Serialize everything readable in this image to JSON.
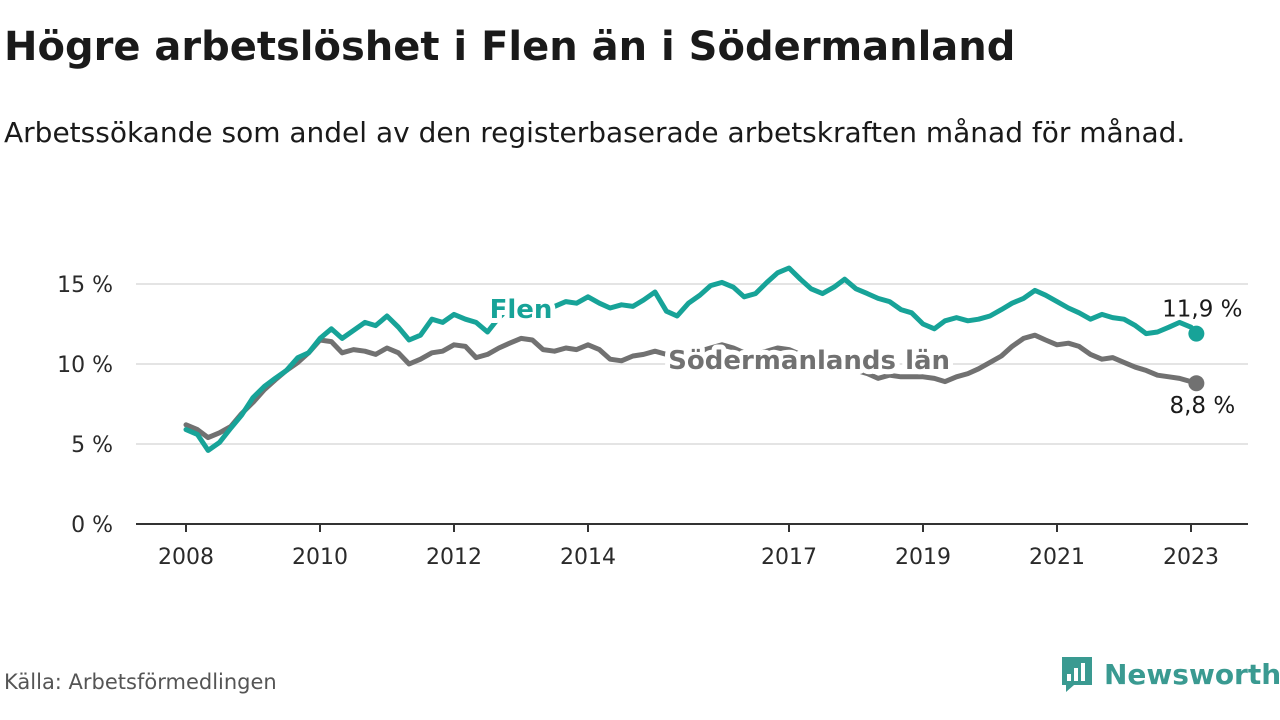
{
  "header": {
    "title": "Högre arbetslöshet i Flen än i Södermanland",
    "subtitle": "Arbetssökande som andel av den registerbaserade arbetskraften månad för månad."
  },
  "footer": {
    "source": "Källa: Arbetsförmedlingen",
    "brand": "Newsworthy",
    "brand_color": "#3a9a91"
  },
  "chart_data": {
    "type": "line",
    "ylim": [
      0,
      16
    ],
    "xlim": [
      2008,
      2023.7
    ],
    "grid": true,
    "x_ticks": [
      {
        "label": "2008",
        "value": 2008
      },
      {
        "label": "2010",
        "value": 2010
      },
      {
        "label": "2012",
        "value": 2012
      },
      {
        "label": "2014",
        "value": 2014
      },
      {
        "label": "2017",
        "value": 2017
      },
      {
        "label": "2019",
        "value": 2019
      },
      {
        "label": "2021",
        "value": 2021
      },
      {
        "label": "2023",
        "value": 2023
      }
    ],
    "y_ticks": [
      {
        "label": "0 %",
        "value": 0
      },
      {
        "label": "5 %",
        "value": 5
      },
      {
        "label": "10 %",
        "value": 10
      },
      {
        "label": "15 %",
        "value": 15
      }
    ],
    "series": [
      {
        "name": "Flen",
        "color": "#17a398",
        "end_label": "11,9 %",
        "points": [
          [
            2008.0,
            5.9
          ],
          [
            2008.17,
            5.6
          ],
          [
            2008.33,
            4.6
          ],
          [
            2008.5,
            5.1
          ],
          [
            2008.67,
            6.0
          ],
          [
            2008.83,
            6.8
          ],
          [
            2009.0,
            7.9
          ],
          [
            2009.17,
            8.6
          ],
          [
            2009.33,
            9.1
          ],
          [
            2009.5,
            9.6
          ],
          [
            2009.67,
            10.4
          ],
          [
            2009.83,
            10.7
          ],
          [
            2010.0,
            11.6
          ],
          [
            2010.17,
            12.2
          ],
          [
            2010.33,
            11.6
          ],
          [
            2010.5,
            12.1
          ],
          [
            2010.67,
            12.6
          ],
          [
            2010.83,
            12.4
          ],
          [
            2011.0,
            13.0
          ],
          [
            2011.17,
            12.3
          ],
          [
            2011.33,
            11.5
          ],
          [
            2011.5,
            11.8
          ],
          [
            2011.67,
            12.8
          ],
          [
            2011.83,
            12.6
          ],
          [
            2012.0,
            13.1
          ],
          [
            2012.17,
            12.8
          ],
          [
            2012.33,
            12.6
          ],
          [
            2012.5,
            12.0
          ],
          [
            2012.67,
            12.9
          ],
          [
            2012.83,
            13.5
          ],
          [
            2013.0,
            13.6
          ],
          [
            2013.17,
            13.4
          ],
          [
            2013.33,
            13.2
          ],
          [
            2013.5,
            13.6
          ],
          [
            2013.67,
            13.9
          ],
          [
            2013.83,
            13.8
          ],
          [
            2014.0,
            14.2
          ],
          [
            2014.17,
            13.8
          ],
          [
            2014.33,
            13.5
          ],
          [
            2014.5,
            13.7
          ],
          [
            2014.67,
            13.6
          ],
          [
            2014.83,
            14.0
          ],
          [
            2015.0,
            14.5
          ],
          [
            2015.17,
            13.3
          ],
          [
            2015.33,
            13.0
          ],
          [
            2015.5,
            13.8
          ],
          [
            2015.67,
            14.3
          ],
          [
            2015.83,
            14.9
          ],
          [
            2016.0,
            15.1
          ],
          [
            2016.17,
            14.8
          ],
          [
            2016.33,
            14.2
          ],
          [
            2016.5,
            14.4
          ],
          [
            2016.67,
            15.1
          ],
          [
            2016.83,
            15.7
          ],
          [
            2017.0,
            16.0
          ],
          [
            2017.17,
            15.3
          ],
          [
            2017.33,
            14.7
          ],
          [
            2017.5,
            14.4
          ],
          [
            2017.67,
            14.8
          ],
          [
            2017.83,
            15.3
          ],
          [
            2018.0,
            14.7
          ],
          [
            2018.17,
            14.4
          ],
          [
            2018.33,
            14.1
          ],
          [
            2018.5,
            13.9
          ],
          [
            2018.67,
            13.4
          ],
          [
            2018.83,
            13.2
          ],
          [
            2019.0,
            12.5
          ],
          [
            2019.17,
            12.2
          ],
          [
            2019.33,
            12.7
          ],
          [
            2019.5,
            12.9
          ],
          [
            2019.67,
            12.7
          ],
          [
            2019.83,
            12.8
          ],
          [
            2020.0,
            13.0
          ],
          [
            2020.17,
            13.4
          ],
          [
            2020.33,
            13.8
          ],
          [
            2020.5,
            14.1
          ],
          [
            2020.67,
            14.6
          ],
          [
            2020.83,
            14.3
          ],
          [
            2021.0,
            13.9
          ],
          [
            2021.17,
            13.5
          ],
          [
            2021.33,
            13.2
          ],
          [
            2021.5,
            12.8
          ],
          [
            2021.67,
            13.1
          ],
          [
            2021.83,
            12.9
          ],
          [
            2022.0,
            12.8
          ],
          [
            2022.17,
            12.4
          ],
          [
            2022.33,
            11.9
          ],
          [
            2022.5,
            12.0
          ],
          [
            2022.67,
            12.3
          ],
          [
            2022.83,
            12.6
          ],
          [
            2023.0,
            12.3
          ],
          [
            2023.08,
            11.9
          ]
        ]
      },
      {
        "name": "Södermanlands län",
        "color": "#717171",
        "end_label": "8,8 %",
        "points": [
          [
            2008.0,
            6.2
          ],
          [
            2008.17,
            5.9
          ],
          [
            2008.33,
            5.4
          ],
          [
            2008.5,
            5.7
          ],
          [
            2008.67,
            6.1
          ],
          [
            2008.83,
            6.9
          ],
          [
            2009.0,
            7.6
          ],
          [
            2009.17,
            8.4
          ],
          [
            2009.33,
            9.0
          ],
          [
            2009.5,
            9.6
          ],
          [
            2009.67,
            10.1
          ],
          [
            2009.83,
            10.7
          ],
          [
            2010.0,
            11.5
          ],
          [
            2010.17,
            11.4
          ],
          [
            2010.33,
            10.7
          ],
          [
            2010.5,
            10.9
          ],
          [
            2010.67,
            10.8
          ],
          [
            2010.83,
            10.6
          ],
          [
            2011.0,
            11.0
          ],
          [
            2011.17,
            10.7
          ],
          [
            2011.33,
            10.0
          ],
          [
            2011.5,
            10.3
          ],
          [
            2011.67,
            10.7
          ],
          [
            2011.83,
            10.8
          ],
          [
            2012.0,
            11.2
          ],
          [
            2012.17,
            11.1
          ],
          [
            2012.33,
            10.4
          ],
          [
            2012.5,
            10.6
          ],
          [
            2012.67,
            11.0
          ],
          [
            2012.83,
            11.3
          ],
          [
            2013.0,
            11.6
          ],
          [
            2013.17,
            11.5
          ],
          [
            2013.33,
            10.9
          ],
          [
            2013.5,
            10.8
          ],
          [
            2013.67,
            11.0
          ],
          [
            2013.83,
            10.9
          ],
          [
            2014.0,
            11.2
          ],
          [
            2014.17,
            10.9
          ],
          [
            2014.33,
            10.3
          ],
          [
            2014.5,
            10.2
          ],
          [
            2014.67,
            10.5
          ],
          [
            2014.83,
            10.6
          ],
          [
            2015.0,
            10.8
          ],
          [
            2015.17,
            10.6
          ],
          [
            2015.33,
            10.2
          ],
          [
            2015.5,
            10.5
          ],
          [
            2015.67,
            10.8
          ],
          [
            2015.83,
            11.0
          ],
          [
            2016.0,
            11.2
          ],
          [
            2016.17,
            11.0
          ],
          [
            2016.33,
            10.7
          ],
          [
            2016.5,
            10.6
          ],
          [
            2016.67,
            10.8
          ],
          [
            2016.83,
            11.0
          ],
          [
            2017.0,
            10.9
          ],
          [
            2017.17,
            10.6
          ],
          [
            2017.33,
            10.2
          ],
          [
            2017.5,
            10.0
          ],
          [
            2017.67,
            10.0
          ],
          [
            2017.83,
            9.8
          ],
          [
            2018.0,
            9.6
          ],
          [
            2018.17,
            9.4
          ],
          [
            2018.33,
            9.1
          ],
          [
            2018.5,
            9.3
          ],
          [
            2018.67,
            9.2
          ],
          [
            2018.83,
            9.2
          ],
          [
            2019.0,
            9.2
          ],
          [
            2019.17,
            9.1
          ],
          [
            2019.33,
            8.9
          ],
          [
            2019.5,
            9.2
          ],
          [
            2019.67,
            9.4
          ],
          [
            2019.83,
            9.7
          ],
          [
            2020.0,
            10.1
          ],
          [
            2020.17,
            10.5
          ],
          [
            2020.33,
            11.1
          ],
          [
            2020.5,
            11.6
          ],
          [
            2020.67,
            11.8
          ],
          [
            2020.83,
            11.5
          ],
          [
            2021.0,
            11.2
          ],
          [
            2021.17,
            11.3
          ],
          [
            2021.33,
            11.1
          ],
          [
            2021.5,
            10.6
          ],
          [
            2021.67,
            10.3
          ],
          [
            2021.83,
            10.4
          ],
          [
            2022.0,
            10.1
          ],
          [
            2022.17,
            9.8
          ],
          [
            2022.33,
            9.6
          ],
          [
            2022.5,
            9.3
          ],
          [
            2022.67,
            9.2
          ],
          [
            2022.83,
            9.1
          ],
          [
            2023.0,
            8.9
          ],
          [
            2023.08,
            8.8
          ]
        ]
      }
    ]
  }
}
